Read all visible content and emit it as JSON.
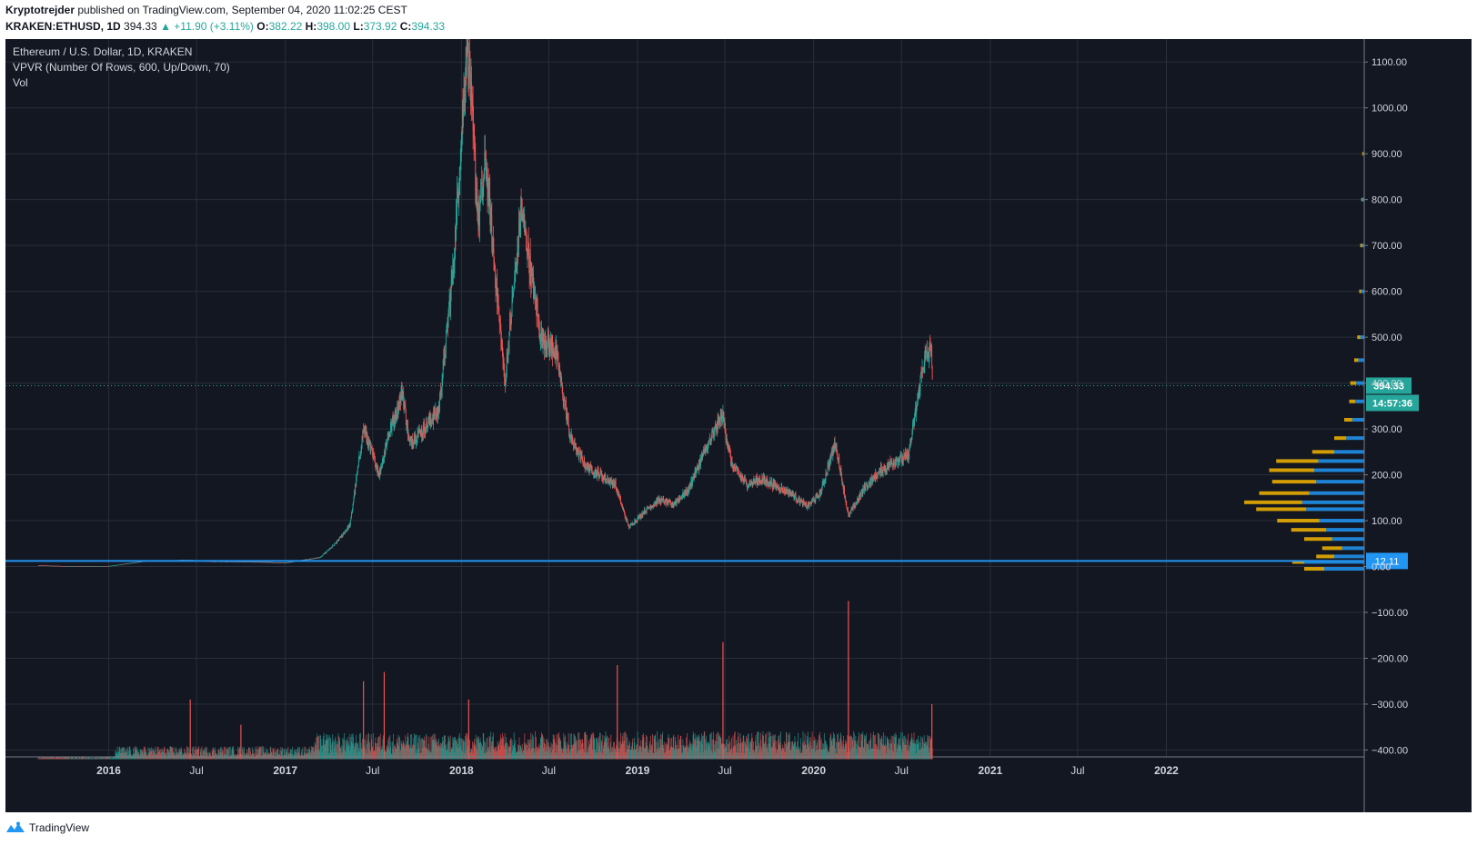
{
  "header": {
    "author": "Kryptotrejder",
    "published": "published on TradingView.com, September 04, 2020 11:02:25 CEST",
    "symbol": "KRAKEN:ETHUSD, 1D",
    "last": "394.33",
    "change": "▲ +11.90 (+3.11%)",
    "o_label": "O:",
    "o_value": "382.22",
    "h_label": "H:",
    "h_value": "398.00",
    "l_label": "L:",
    "l_value": "373.92",
    "c_label": "C:",
    "c_value": "394.33"
  },
  "legend": {
    "line1": "Ethereum / U.S. Dollar, 1D, KRAKEN",
    "line2": "VPVR (Number Of Rows, 600, Up/Down, 70)",
    "line3": "Vol"
  },
  "footer": {
    "brand": "TradingView",
    "icon": "tradingview-logo-icon"
  },
  "colors": {
    "background": "#131722",
    "grid": "#2a2e39",
    "up": "#26a69a",
    "down": "#ef5350",
    "hline": "#2196f3",
    "vp_up": "#2196f3",
    "vp_down": "#f5b400",
    "axis_text": "#d1d4dc"
  },
  "chart_data": {
    "type": "candlestick",
    "timeframe": "1D",
    "y_ticks": [
      "1100.00",
      "1000.00",
      "900.00",
      "800.00",
      "700.00",
      "600.00",
      "500.00",
      "400.00",
      "300.00",
      "200.00",
      "100.00",
      "0.00",
      "−100.00",
      "−200.00",
      "−300.00",
      "−400.00"
    ],
    "y_tick_values": [
      1100,
      1000,
      900,
      800,
      700,
      600,
      500,
      400,
      300,
      200,
      100,
      0,
      -100,
      -200,
      -300,
      -400
    ],
    "ylim": [
      -415,
      1150
    ],
    "x_ticks": [
      "2016",
      "Jul",
      "2017",
      "Jul",
      "2018",
      "Jul",
      "2019",
      "Jul",
      "2020",
      "Jul",
      "2021",
      "Jul",
      "2022"
    ],
    "x_tick_dates": [
      "2016-01-01",
      "2016-07-01",
      "2017-01-01",
      "2017-07-01",
      "2018-01-01",
      "2018-07-01",
      "2019-01-01",
      "2019-07-01",
      "2020-01-01",
      "2020-07-01",
      "2021-01-01",
      "2021-07-01",
      "2022-01-01"
    ],
    "xlim": [
      "2015-06-01",
      "2023-02-15"
    ],
    "price_series": {
      "dates": [
        "2015-08-07",
        "2015-10-01",
        "2016-01-01",
        "2016-03-15",
        "2016-06-15",
        "2016-08-01",
        "2016-11-01",
        "2017-01-01",
        "2017-03-15",
        "2017-04-15",
        "2017-05-15",
        "2017-06-12",
        "2017-07-15",
        "2017-08-01",
        "2017-09-01",
        "2017-09-15",
        "2017-10-15",
        "2017-11-15",
        "2017-12-15",
        "2018-01-13",
        "2018-02-05",
        "2018-02-20",
        "2018-04-01",
        "2018-05-05",
        "2018-06-15",
        "2018-07-15",
        "2018-08-15",
        "2018-09-15",
        "2018-10-15",
        "2018-11-15",
        "2018-12-14",
        "2019-01-15",
        "2019-02-15",
        "2019-03-15",
        "2019-04-15",
        "2019-05-15",
        "2019-06-26",
        "2019-07-15",
        "2019-08-15",
        "2019-09-15",
        "2019-10-15",
        "2019-11-15",
        "2019-12-18",
        "2020-01-15",
        "2020-02-15",
        "2020-03-13",
        "2020-04-15",
        "2020-05-15",
        "2020-06-15",
        "2020-07-15",
        "2020-08-01",
        "2020-08-14",
        "2020-09-01",
        "2020-09-03"
      ],
      "close": [
        2.8,
        0.8,
        0.95,
        11.5,
        14,
        11,
        10,
        8,
        20,
        50,
        90,
        300,
        200,
        280,
        380,
        270,
        300,
        340,
        650,
        1150,
        750,
        880,
        400,
        780,
        500,
        470,
        280,
        220,
        200,
        180,
        85,
        120,
        145,
        135,
        165,
        240,
        330,
        220,
        180,
        190,
        175,
        160,
        130,
        160,
        270,
        110,
        170,
        205,
        230,
        240,
        345,
        438,
        480,
        394.33
      ]
    },
    "last_price": "394.33",
    "countdown": "14:57:36",
    "horizontal_line": "12.11",
    "volume_spikes": [
      {
        "date": "2016-06-18",
        "level": -290
      },
      {
        "date": "2016-10-01",
        "level": -345
      },
      {
        "date": "2017-06-12",
        "level": -250
      },
      {
        "date": "2017-07-25",
        "level": -230
      },
      {
        "date": "2018-01-16",
        "level": -290
      },
      {
        "date": "2018-11-20",
        "level": -215
      },
      {
        "date": "2019-06-27",
        "level": -165
      },
      {
        "date": "2020-03-13",
        "level": -75
      },
      {
        "date": "2020-09-02",
        "level": -300
      }
    ],
    "vpvr_profile": [
      {
        "price": -5,
        "up": 40,
        "down": 20
      },
      {
        "price": 10,
        "up": 60,
        "down": 12
      },
      {
        "price": 22,
        "up": 30,
        "down": 18
      },
      {
        "price": 40,
        "up": 22,
        "down": 20
      },
      {
        "price": 60,
        "up": 32,
        "down": 28
      },
      {
        "price": 80,
        "up": 38,
        "down": 35
      },
      {
        "price": 100,
        "up": 45,
        "down": 42
      },
      {
        "price": 125,
        "up": 58,
        "down": 50
      },
      {
        "price": 140,
        "up": 62,
        "down": 58
      },
      {
        "price": 160,
        "up": 55,
        "down": 50
      },
      {
        "price": 185,
        "up": 48,
        "down": 44
      },
      {
        "price": 210,
        "up": 50,
        "down": 45
      },
      {
        "price": 230,
        "up": 46,
        "down": 42
      },
      {
        "price": 250,
        "up": 30,
        "down": 22
      },
      {
        "price": 280,
        "up": 18,
        "down": 12
      },
      {
        "price": 320,
        "up": 12,
        "down": 8
      },
      {
        "price": 360,
        "up": 9,
        "down": 6
      },
      {
        "price": 400,
        "up": 8,
        "down": 6
      },
      {
        "price": 450,
        "up": 6,
        "down": 4
      },
      {
        "price": 500,
        "up": 4,
        "down": 3
      },
      {
        "price": 600,
        "up": 3,
        "down": 2
      },
      {
        "price": 700,
        "up": 2,
        "down": 2
      },
      {
        "price": 800,
        "up": 2,
        "down": 1
      },
      {
        "price": 900,
        "up": 1,
        "down": 1
      }
    ]
  }
}
